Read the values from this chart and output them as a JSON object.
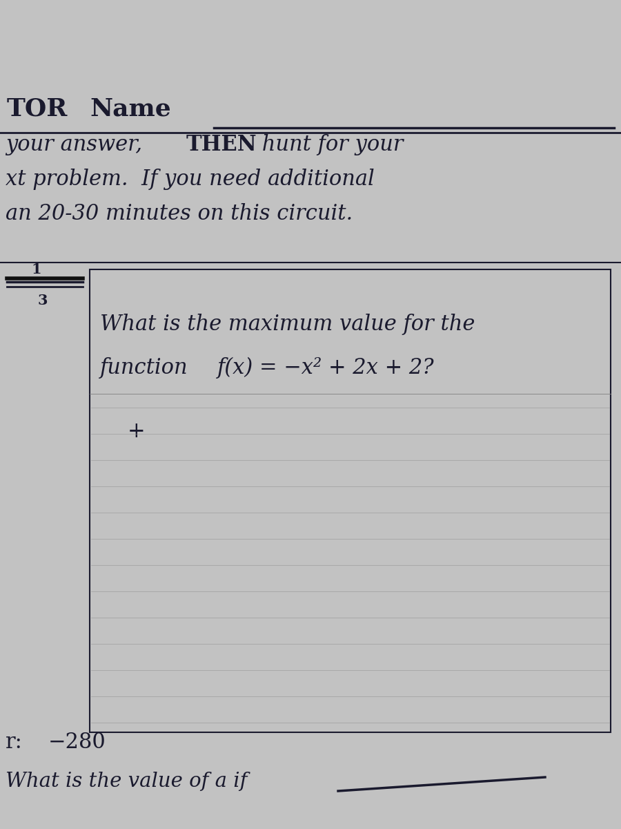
{
  "bg_color": "#c2c2c2",
  "text_color": "#1a1a2e",
  "line_color": "#1a1a2e",
  "tor_text": "TOR",
  "name_text": "Name",
  "instr1": "your answer, ",
  "instr1b": "THEN",
  "instr1c": " hunt for your",
  "instr2": "xt problem.  If you need additional",
  "instr3": "an 20-30 minutes on this circuit.",
  "frac_num": "1",
  "frac_den": "3",
  "q_line1": "What is the maximum value for the",
  "q_line2a": "function  ",
  "q_line2b": "f(x) = −x² + 2x + 2?",
  "plus": "+",
  "ans_label": "r:",
  "ans_val": "−280",
  "next_q": "What is the value of a if",
  "title_fs": 26,
  "body_fs": 22,
  "small_fs": 15
}
